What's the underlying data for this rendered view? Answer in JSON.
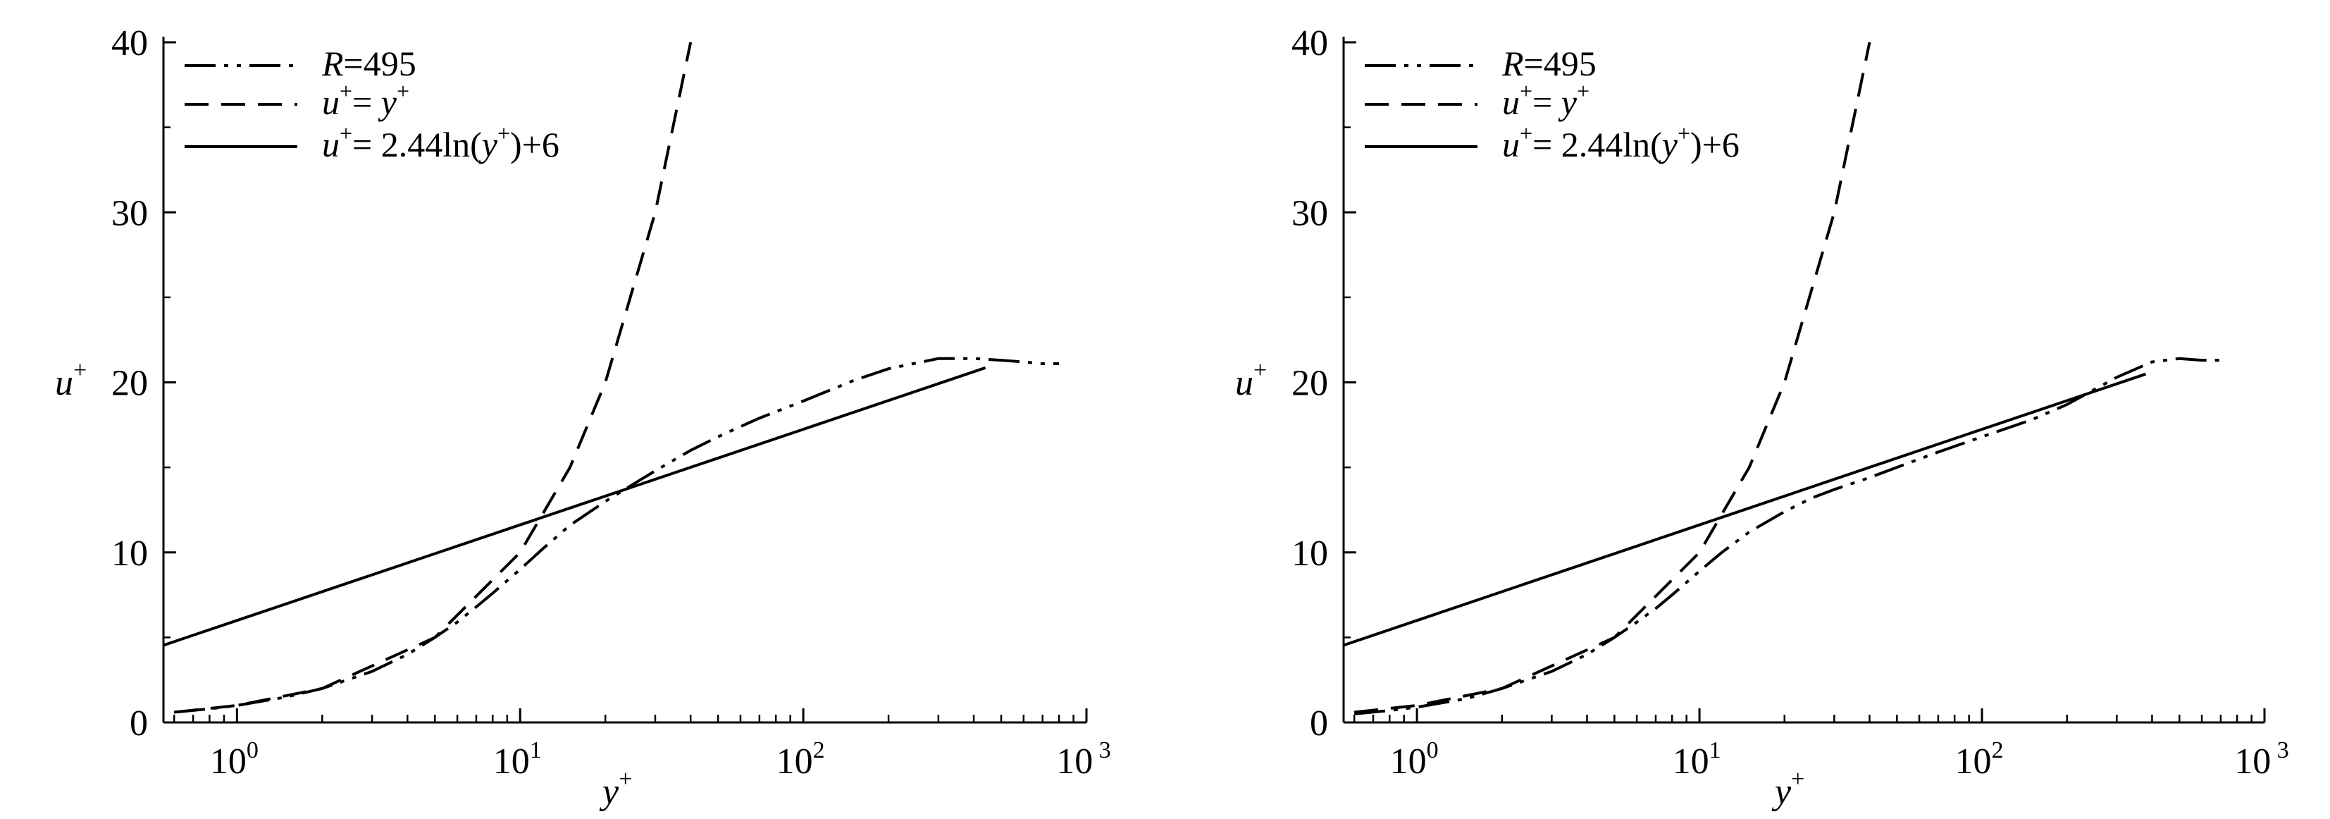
{
  "figure": {
    "panels": [
      {
        "ylabel": "u",
        "ylabel_sup": "+",
        "xlabel": "y",
        "xlabel_sup": "+",
        "yticks": [
          "0",
          "10",
          "20",
          "30",
          "40"
        ],
        "xticks": [
          {
            "base": "10",
            "exp": "0"
          },
          {
            "base": "10",
            "exp": "1"
          },
          {
            "base": "10",
            "exp": "2"
          },
          {
            "base": "10",
            "exp": " 3"
          }
        ],
        "legend": [
          {
            "var": "R",
            "text": "=495"
          },
          {
            "var1": "u",
            "sup1": "+",
            "eq": "= ",
            "var2": "y",
            "sup2": "+"
          },
          {
            "var1": "u",
            "sup1": "+",
            "eq": "= 2.44ln(",
            "var2": "y",
            "sup2": "+",
            "tail": ")+6"
          }
        ]
      },
      {
        "ylabel": "u",
        "ylabel_sup": "+",
        "xlabel": "y",
        "xlabel_sup": "+",
        "yticks": [
          "0",
          "10",
          "20",
          "30",
          "40"
        ],
        "xticks": [
          {
            "base": "10",
            "exp": "0"
          },
          {
            "base": "10",
            "exp": "1"
          },
          {
            "base": "10",
            "exp": "2"
          },
          {
            "base": "10",
            "exp": " 3"
          }
        ],
        "legend": [
          {
            "var": "R",
            "text": "=495"
          },
          {
            "var1": "u",
            "sup1": "+",
            "eq": "= ",
            "var2": "y",
            "sup2": "+"
          },
          {
            "var1": "u",
            "sup1": "+",
            "eq": "= 2.44ln(",
            "var2": "y",
            "sup2": "+",
            "tail": ")+6"
          }
        ]
      }
    ]
  },
  "chart_data": [
    {
      "type": "line",
      "xscale": "log",
      "xlim": [
        0.55,
        1000
      ],
      "ylim": [
        0,
        40
      ],
      "xlabel": "y+",
      "ylabel": "u+",
      "legend_position": "top-left",
      "series": [
        {
          "name": "R=495",
          "style": "dash-dot-dot",
          "x": [
            0.6,
            0.8,
            1,
            1.5,
            2,
            3,
            4,
            5,
            6,
            7,
            8,
            10,
            12,
            15,
            20,
            25,
            30,
            40,
            50,
            70,
            100,
            150,
            200,
            300,
            400,
            500,
            600,
            700,
            800
          ],
          "y": [
            0.6,
            0.8,
            1.0,
            1.5,
            2.0,
            3.0,
            4.0,
            5.0,
            5.9,
            6.8,
            7.6,
            9.0,
            10.2,
            11.6,
            13.0,
            14.0,
            14.8,
            16.0,
            16.8,
            17.9,
            18.9,
            20.1,
            20.8,
            21.4,
            21.4,
            21.3,
            21.2,
            21.1,
            21.1
          ]
        },
        {
          "name": "u+ = y+",
          "style": "dashed",
          "x": [
            0.6,
            1,
            2,
            5,
            10,
            15,
            20,
            30,
            40
          ],
          "y": [
            0.6,
            1,
            2,
            5,
            10,
            15,
            20,
            30,
            40
          ]
        },
        {
          "name": "u+ = 2.44ln(y+)+6",
          "style": "solid",
          "x": [
            0.55,
            1,
            10,
            100,
            440
          ],
          "y": [
            4.54,
            6.0,
            11.62,
            17.24,
            20.86
          ]
        }
      ]
    },
    {
      "type": "line",
      "xscale": "log",
      "xlim": [
        0.55,
        1000
      ],
      "ylim": [
        0,
        40
      ],
      "xlabel": "y+",
      "ylabel": "u+",
      "legend_position": "top-left",
      "series": [
        {
          "name": "R=495",
          "style": "dash-dot-dot",
          "x": [
            0.6,
            0.8,
            1,
            1.5,
            2,
            3,
            4,
            5,
            6,
            7,
            8,
            10,
            12,
            15,
            20,
            25,
            30,
            40,
            50,
            70,
            100,
            150,
            200,
            300,
            400,
            500,
            600,
            700
          ],
          "y": [
            0.5,
            0.7,
            0.9,
            1.4,
            2.0,
            3.0,
            4.0,
            5.0,
            5.9,
            6.7,
            7.5,
            8.9,
            10.0,
            11.2,
            12.4,
            13.2,
            13.7,
            14.4,
            15.0,
            15.9,
            16.8,
            17.8,
            18.7,
            20.3,
            21.2,
            21.4,
            21.3,
            21.3
          ]
        },
        {
          "name": "u+ = y+",
          "style": "dashed",
          "x": [
            0.6,
            1,
            2,
            5,
            10,
            15,
            20,
            30,
            40
          ],
          "y": [
            0.6,
            1,
            2,
            5,
            10,
            15,
            20,
            30,
            40
          ]
        },
        {
          "name": "u+ = 2.44ln(y+)+6",
          "style": "solid",
          "x": [
            0.55,
            1,
            10,
            100,
            380
          ],
          "y": [
            4.54,
            6.0,
            11.62,
            17.24,
            20.49
          ]
        }
      ]
    }
  ]
}
